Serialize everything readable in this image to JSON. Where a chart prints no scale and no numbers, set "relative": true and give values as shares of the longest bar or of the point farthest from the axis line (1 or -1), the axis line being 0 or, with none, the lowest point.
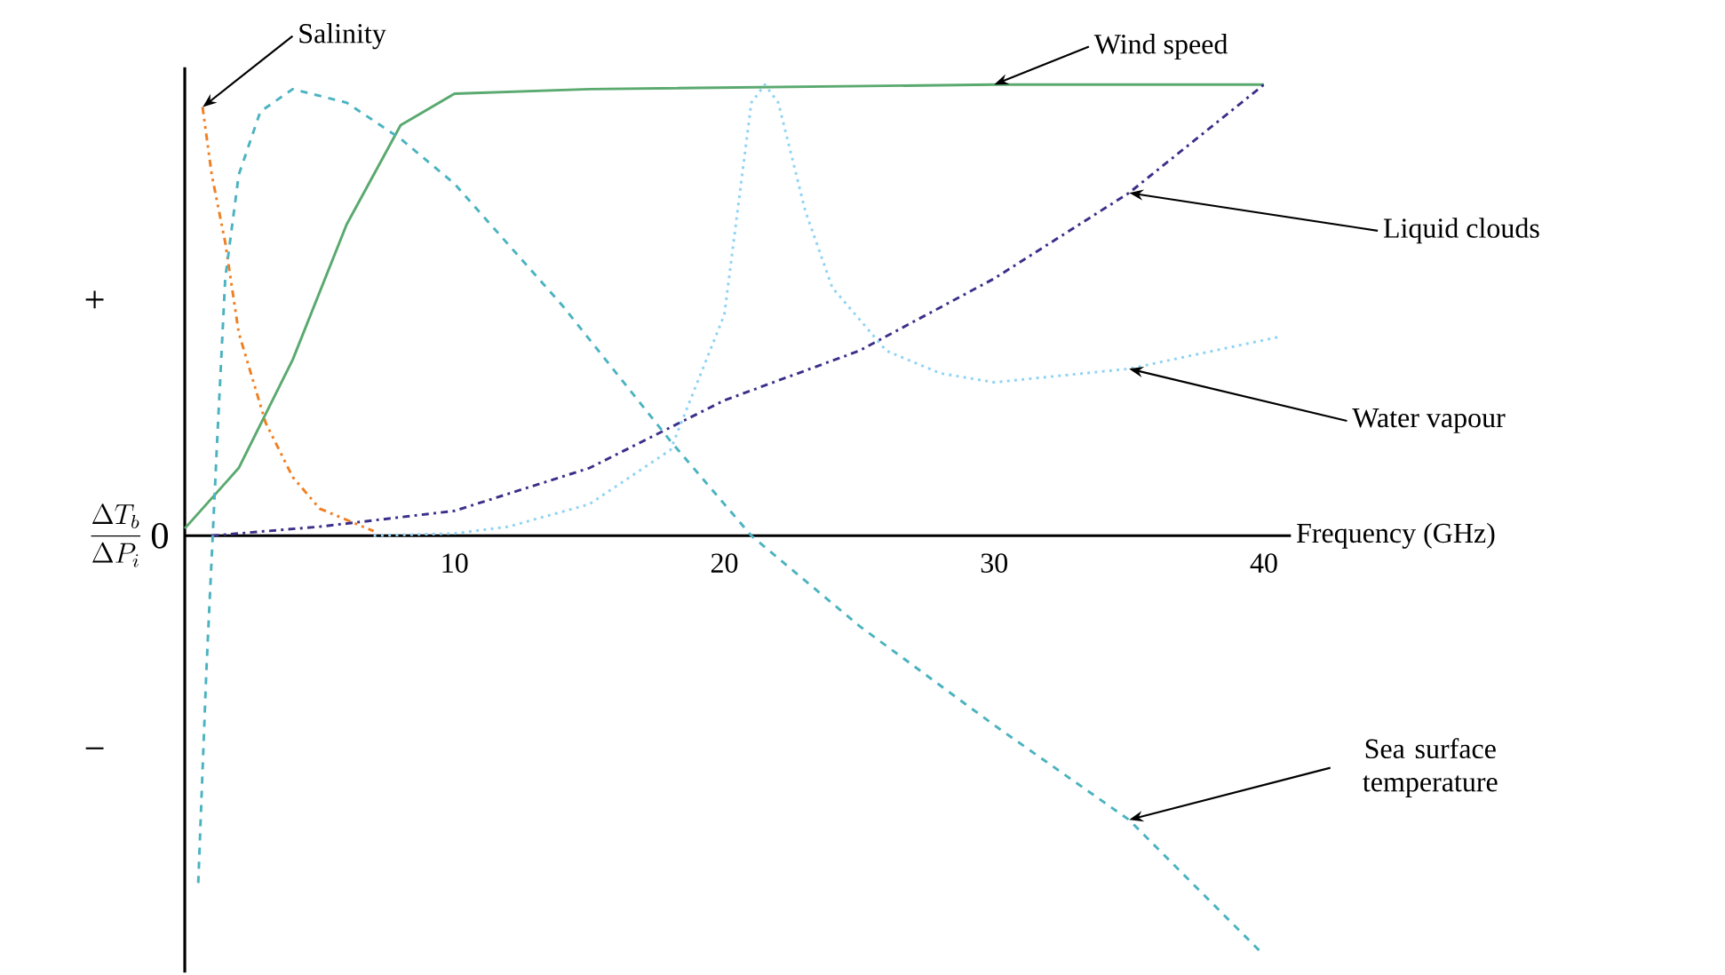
{
  "chart_data": {
    "type": "line",
    "relative": true,
    "xlabel": "Frequency (GHz)",
    "ylabel": "\\frac{\\Delta T_b}{\\Delta P_i}",
    "xlim": [
      0,
      41
    ],
    "xticks": [
      10,
      20,
      30,
      40
    ],
    "annotations": [
      "0",
      "+",
      "−"
    ],
    "series": [
      {
        "name": "Salinity",
        "color": "#f07f22",
        "line_style": "dashdotdot",
        "x": [
          0.66,
          1,
          1.5,
          2,
          3,
          4,
          5,
          7
        ],
        "values": [
          0.95,
          0.8,
          0.65,
          0.45,
          0.25,
          0.13,
          0.06,
          0.01
        ]
      },
      {
        "name": "Wind speed",
        "color": "#5aa96f",
        "line_style": "solid",
        "x": [
          0,
          2,
          4,
          6,
          8,
          10,
          15,
          30,
          40
        ],
        "values": [
          0.016,
          0.15,
          0.39,
          0.69,
          0.91,
          0.98,
          0.99,
          1.0,
          1.0
        ]
      },
      {
        "name": "Liquid clouds",
        "color": "#3a2f8a",
        "line_style": "dashdot",
        "x": [
          1,
          5,
          10,
          15,
          20,
          25,
          30,
          35,
          40
        ],
        "values": [
          0,
          0.02,
          0.055,
          0.15,
          0.3,
          0.41,
          0.57,
          0.76,
          1.0
        ]
      },
      {
        "name": "Water vapour",
        "color": "#8fd3f4",
        "line_style": "dotted",
        "x": [
          7,
          10,
          12,
          15,
          18,
          20,
          21,
          21.5,
          22,
          23,
          24,
          26,
          28,
          30,
          35,
          40.5
        ],
        "values": [
          0,
          0.005,
          0.02,
          0.07,
          0.19,
          0.49,
          0.96,
          1.0,
          0.96,
          0.72,
          0.55,
          0.41,
          0.36,
          0.34,
          0.37,
          0.44
        ]
      },
      {
        "name": "Sea surface temperature",
        "color": "#4bb3c0",
        "line_style": "dashed",
        "x": [
          0.5,
          0.8,
          1.2,
          1.5,
          2,
          2.8,
          4,
          6,
          8,
          10,
          14,
          18,
          21,
          25,
          30,
          35,
          40
        ],
        "values": [
          -0.77,
          -0.3,
          0.21,
          0.57,
          0.8,
          0.94,
          0.99,
          0.96,
          0.88,
          0.78,
          0.51,
          0.21,
          0,
          -0.2,
          -0.42,
          -0.63,
          -0.93
        ]
      }
    ]
  }
}
